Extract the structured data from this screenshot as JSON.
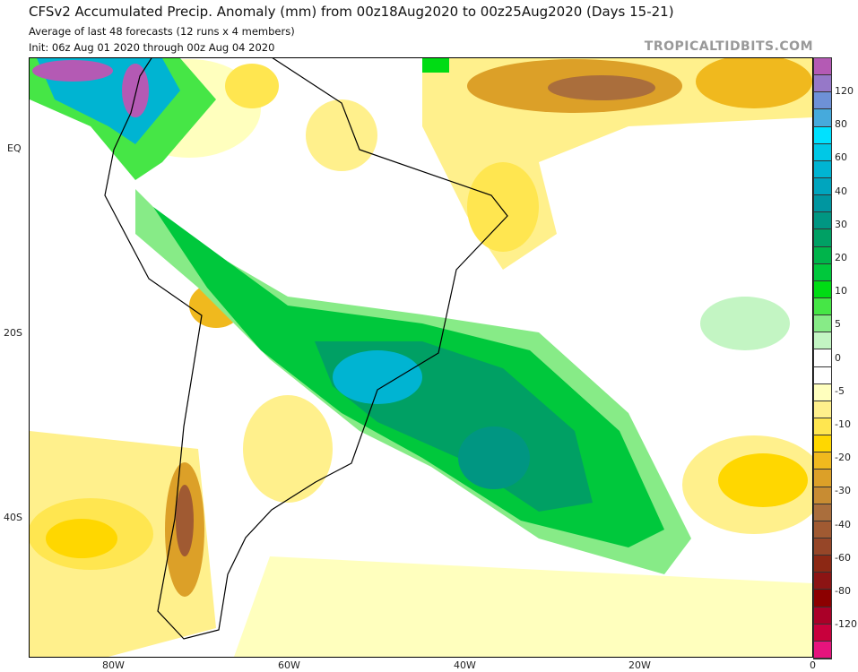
{
  "header": {
    "title": "CFSv2 Accumulated Precip. Anomaly (mm) from 00z18Aug2020 to 00z25Aug2020 (Days 15-21)",
    "subtitle": "Average of last 48 forecasts (12 runs x 4 members)",
    "init": "Init: 06z Aug 01 2020 through 00z Aug 04 2020",
    "brand": "TROPICALTIDBITS.COM"
  },
  "axes": {
    "lat_labels": [
      "EQ",
      "20S",
      "40S"
    ],
    "lon_labels": [
      "80W",
      "60W",
      "40W",
      "20W",
      "0"
    ]
  },
  "colorbar": {
    "units": "mm",
    "labels": [
      "120",
      "80",
      "60",
      "40",
      "30",
      "20",
      "10",
      "5",
      "0",
      "-5",
      "-10",
      "-20",
      "-30",
      "-40",
      "-60",
      "-80",
      "-120"
    ],
    "colors": [
      "#b45ab4",
      "#9678c8",
      "#6e91d7",
      "#46aadc",
      "#00e1ff",
      "#00c8e6",
      "#00b4d2",
      "#00a5be",
      "#0096a0",
      "#009682",
      "#00a064",
      "#00b44b",
      "#00c83c",
      "#00dc14",
      "#46e646",
      "#87eb87",
      "#c3f5c3",
      "#ffffff",
      "#ffffff",
      "#ffffbe",
      "#fff08c",
      "#ffe650",
      "#ffd700",
      "#f0b91e",
      "#dca028",
      "#c88c32",
      "#aa6e3c",
      "#a05a32",
      "#964628",
      "#8c2814",
      "#8c1414",
      "#8c0000",
      "#aa0028",
      "#c8003c",
      "#e6147d"
    ]
  }
}
